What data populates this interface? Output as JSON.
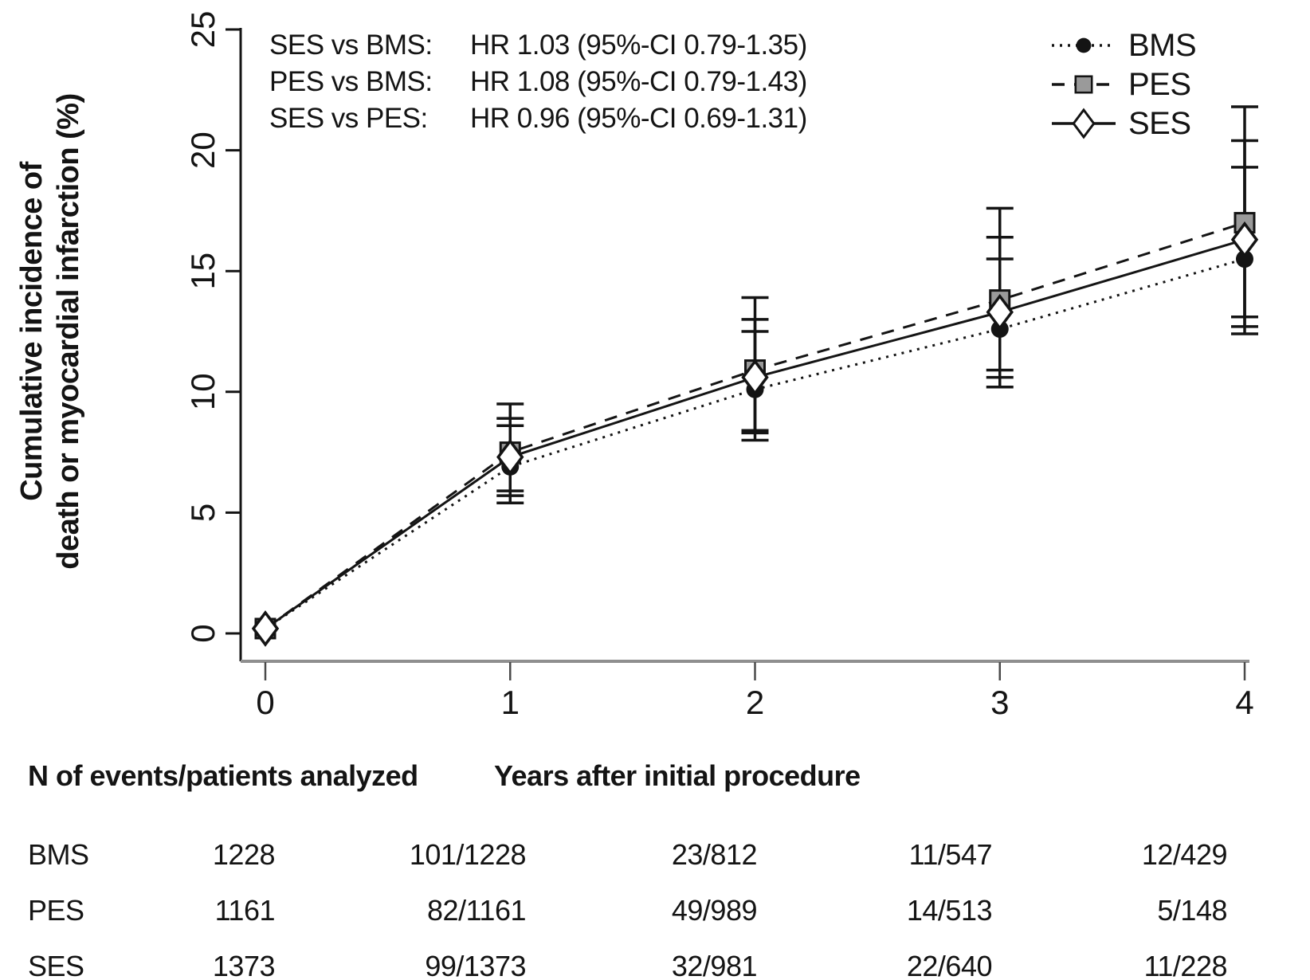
{
  "chart_data": {
    "type": "line",
    "title": "",
    "xlabel": "Years after initial procedure",
    "ylabel_lines": [
      "Cumulative incidence of",
      "death or myocardial infarction (%)"
    ],
    "x": [
      0,
      1,
      2,
      3,
      4
    ],
    "xlim": [
      0,
      4
    ],
    "ylim": [
      0,
      25
    ],
    "yticks": [
      0,
      5,
      10,
      15,
      20,
      25
    ],
    "grid": false,
    "legend_position": "top-right",
    "series": [
      {
        "name": "BMS",
        "line": "dotted",
        "marker": "circle-filled",
        "values": [
          0.2,
          6.9,
          10.1,
          12.6,
          15.5
        ],
        "ci_low": [
          null,
          5.4,
          8.0,
          10.2,
          12.4
        ],
        "ci_high": [
          null,
          8.6,
          12.5,
          15.5,
          19.3
        ]
      },
      {
        "name": "PES",
        "line": "dashed",
        "marker": "square-gray",
        "values": [
          0.2,
          7.5,
          10.9,
          13.8,
          17.0
        ],
        "ci_low": [
          null,
          5.9,
          8.4,
          10.9,
          13.1
        ],
        "ci_high": [
          null,
          9.5,
          13.9,
          17.6,
          21.8
        ]
      },
      {
        "name": "SES",
        "line": "solid",
        "marker": "diamond-open",
        "values": [
          0.2,
          7.3,
          10.6,
          13.3,
          16.3
        ],
        "ci_low": [
          null,
          5.7,
          8.3,
          10.6,
          12.7
        ],
        "ci_high": [
          null,
          8.9,
          13.0,
          16.4,
          20.4
        ]
      }
    ]
  },
  "annotations": {
    "lines": [
      {
        "label": "SES vs BMS:",
        "value": "HR 1.03 (95%-CI 0.79-1.35)"
      },
      {
        "label": "PES vs BMS:",
        "value": "HR 1.08 (95%-CI 0.79-1.43)"
      },
      {
        "label": "SES vs PES:",
        "value": "HR 0.96 (95%-CI 0.69-1.31)"
      }
    ]
  },
  "table": {
    "caption_left": "N of events/patients analyzed",
    "caption_right": "Years after initial procedure",
    "rows": [
      {
        "label": "BMS",
        "cells": [
          "1228",
          "101/1228",
          "23/812",
          "11/547",
          "12/429"
        ]
      },
      {
        "label": "PES",
        "cells": [
          "1161",
          "82/1161",
          "49/989",
          "14/513",
          "5/148"
        ]
      },
      {
        "label": "SES",
        "cells": [
          "1373",
          "99/1373",
          "32/981",
          "22/640",
          "11/228"
        ]
      }
    ]
  },
  "colors": {
    "ink": "#141414",
    "pes_square_fill": "#9a9a9a",
    "x_axis_gray": "#8f8f8f",
    "background": "#ffffff"
  }
}
